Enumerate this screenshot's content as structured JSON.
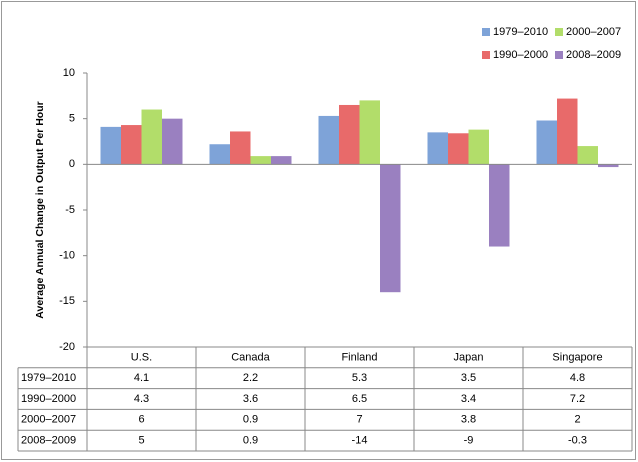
{
  "chart_data": {
    "type": "bar",
    "ylabel": "Average Annual Change in Output Per Hour",
    "categories": [
      "U.S.",
      "Canada",
      "Finland",
      "Japan",
      "Singapore"
    ],
    "series": [
      {
        "name": "1979–2010",
        "color": "#7ea3d8",
        "values": [
          4.1,
          2.2,
          5.3,
          3.5,
          4.8
        ]
      },
      {
        "name": "1990–2000",
        "color": "#e86a6a",
        "values": [
          4.3,
          3.6,
          6.5,
          3.4,
          7.2
        ]
      },
      {
        "name": "2000–2007",
        "color": "#b2dd6a",
        "values": [
          6,
          0.9,
          7,
          3.8,
          2
        ]
      },
      {
        "name": "2008–2009",
        "color": "#9a80c0",
        "values": [
          5,
          0.9,
          -14,
          -9,
          -0.3
        ]
      }
    ],
    "ylim": [
      -20,
      10
    ],
    "yticks": [
      -20,
      -15,
      -10,
      -5,
      0,
      5,
      10
    ],
    "grid": false,
    "legend": "top-right"
  }
}
